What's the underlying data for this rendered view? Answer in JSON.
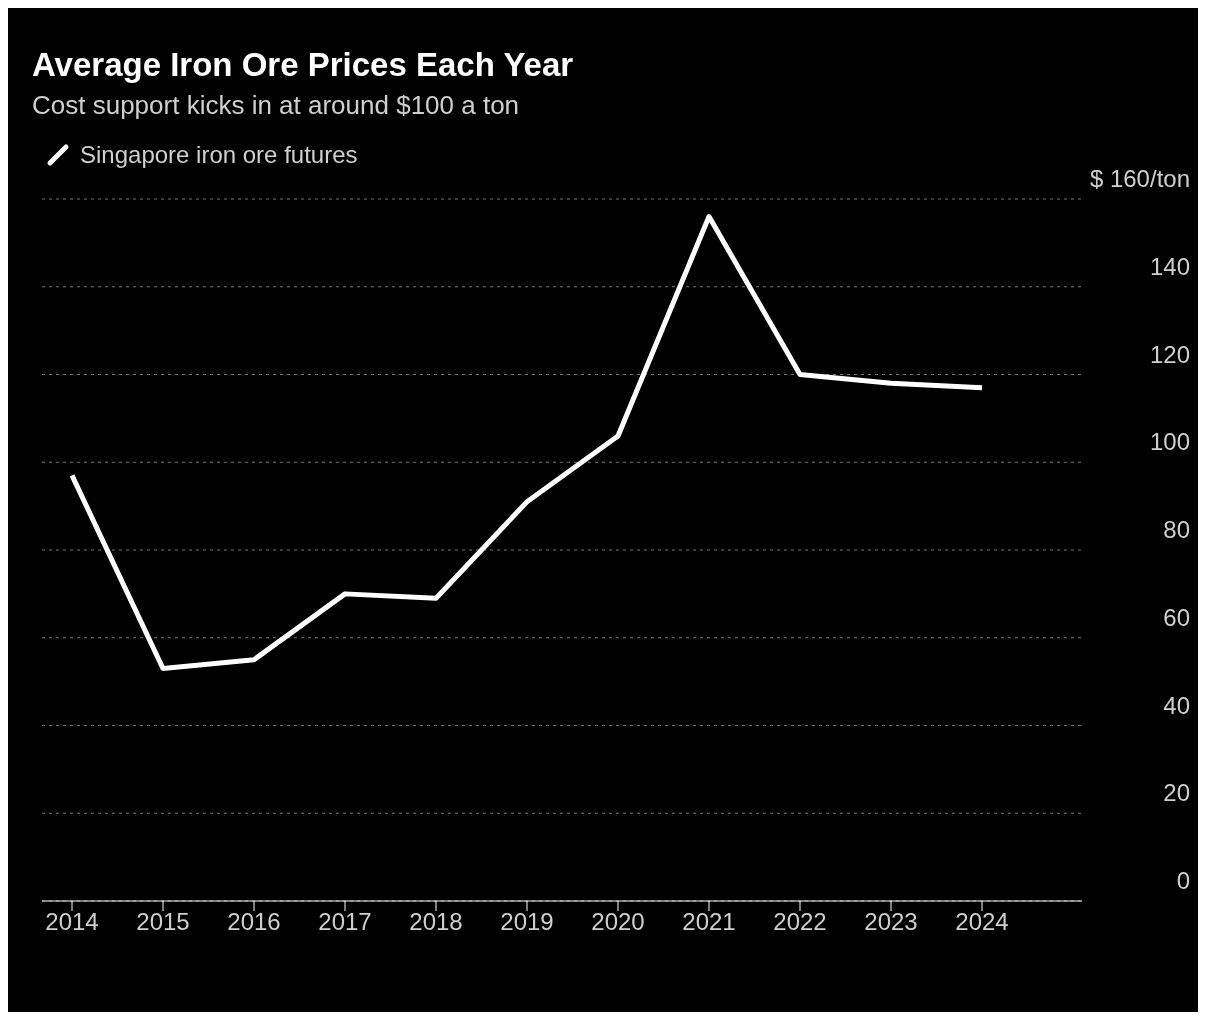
{
  "chart_data": {
    "type": "line",
    "title": "Average Iron Ore Prices Each Year",
    "subtitle": "Cost support kicks in at around $100 a ton",
    "categories": [
      "2014",
      "2015",
      "2016",
      "2017",
      "2018",
      "2019",
      "2020",
      "2021",
      "2022",
      "2023",
      "2024"
    ],
    "series": [
      {
        "name": "Singapore iron ore futures",
        "color": "#ffffff",
        "values": [
          97,
          53,
          55,
          70,
          69,
          91,
          106,
          156,
          120,
          118,
          117
        ]
      }
    ],
    "ylim": [
      0,
      160
    ],
    "yticks": [
      0,
      20,
      40,
      60,
      80,
      100,
      120,
      140,
      {
        "value": 160,
        "label": "$ 160/ton"
      }
    ],
    "grid": "y",
    "legend": "top left",
    "marker": "none",
    "line_style": "solid"
  }
}
